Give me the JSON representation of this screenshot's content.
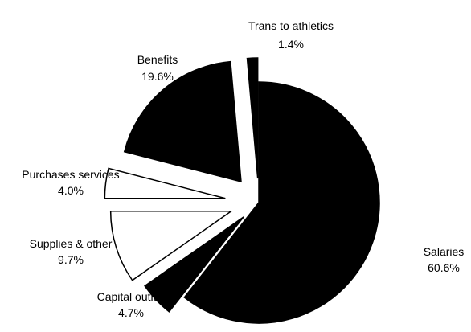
{
  "chart_data": {
    "type": "pie",
    "title": "",
    "slices": [
      {
        "label": "Salaries",
        "value": 60.6,
        "value_text": "60.6%",
        "fill": "black"
      },
      {
        "label": "Capital outlay",
        "value": 4.7,
        "value_text": "4.7%",
        "fill": "black"
      },
      {
        "label": "Supplies & other",
        "value": 9.7,
        "value_text": "9.7%",
        "fill": "white"
      },
      {
        "label": "Purchases services",
        "value": 4.0,
        "value_text": "4.0%",
        "fill": "white"
      },
      {
        "label": "Benefits",
        "value": 19.6,
        "value_text": "19.6%",
        "fill": "black"
      },
      {
        "label": "Trans to athletics",
        "value": 1.4,
        "value_text": "1.4%",
        "fill": "black"
      }
    ],
    "start_angle": "12 o'clock",
    "direction": "clockwise",
    "exploded": true,
    "legend": "none"
  }
}
